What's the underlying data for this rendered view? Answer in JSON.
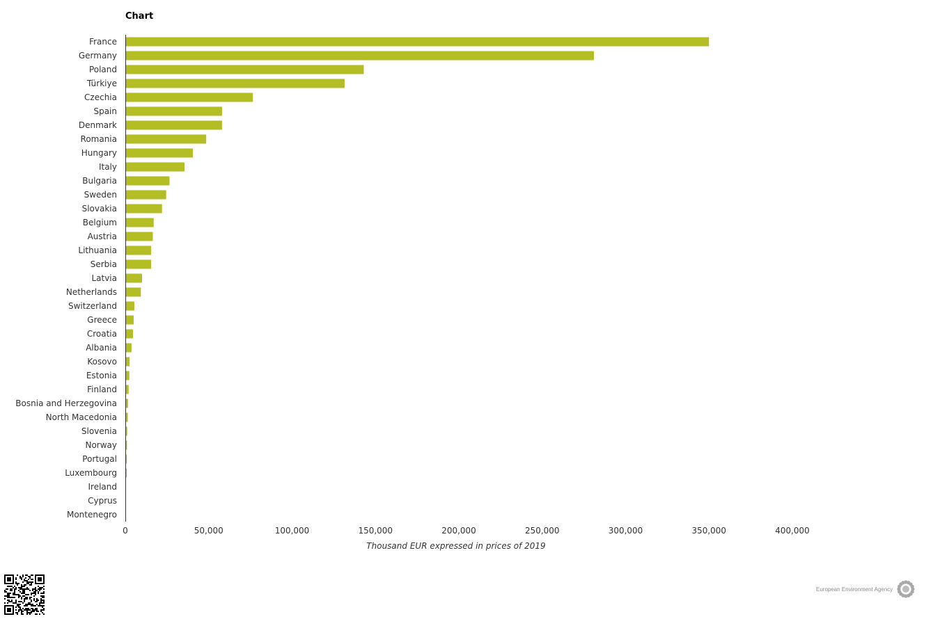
{
  "title": "Chart",
  "logo_text": "European Environment Agency",
  "colors": {
    "bar": "#b2be23",
    "axis": "#333333"
  },
  "chart_data": {
    "type": "bar",
    "orientation": "horizontal",
    "categories": [
      "France",
      "Germany",
      "Poland",
      "Türkiye",
      "Czechia",
      "Spain",
      "Denmark",
      "Romania",
      "Hungary",
      "Italy",
      "Bulgaria",
      "Sweden",
      "Slovakia",
      "Belgium",
      "Austria",
      "Lithuania",
      "Serbia",
      "Latvia",
      "Netherlands",
      "Switzerland",
      "Greece",
      "Croatia",
      "Albania",
      "Kosovo",
      "Estonia",
      "Finland",
      "Bosnia and Herzegovina",
      "North Macedonia",
      "Slovenia",
      "Norway",
      "Portugal",
      "Luxembourg",
      "Ireland",
      "Cyprus",
      "Montenegro"
    ],
    "values": [
      350000,
      281000,
      143000,
      131500,
      76500,
      58000,
      58000,
      48500,
      40500,
      35500,
      26500,
      24500,
      22000,
      17000,
      16500,
      15500,
      15500,
      10000,
      9300,
      5400,
      5000,
      4600,
      3700,
      2600,
      2400,
      2000,
      1600,
      1500,
      1100,
      1000,
      900,
      800,
      400,
      200,
      100
    ],
    "xlabel": "Thousand EUR expressed in prices of 2019",
    "ylabel": "",
    "xlim": [
      0,
      400000
    ],
    "xticks": [
      0,
      50000,
      100000,
      150000,
      200000,
      250000,
      300000,
      350000,
      400000
    ],
    "xtick_labels": [
      "0",
      "50,000",
      "100,000",
      "150,000",
      "200,000",
      "250,000",
      "300,000",
      "350,000",
      "400,000"
    ],
    "grid": false,
    "legend": "none"
  }
}
